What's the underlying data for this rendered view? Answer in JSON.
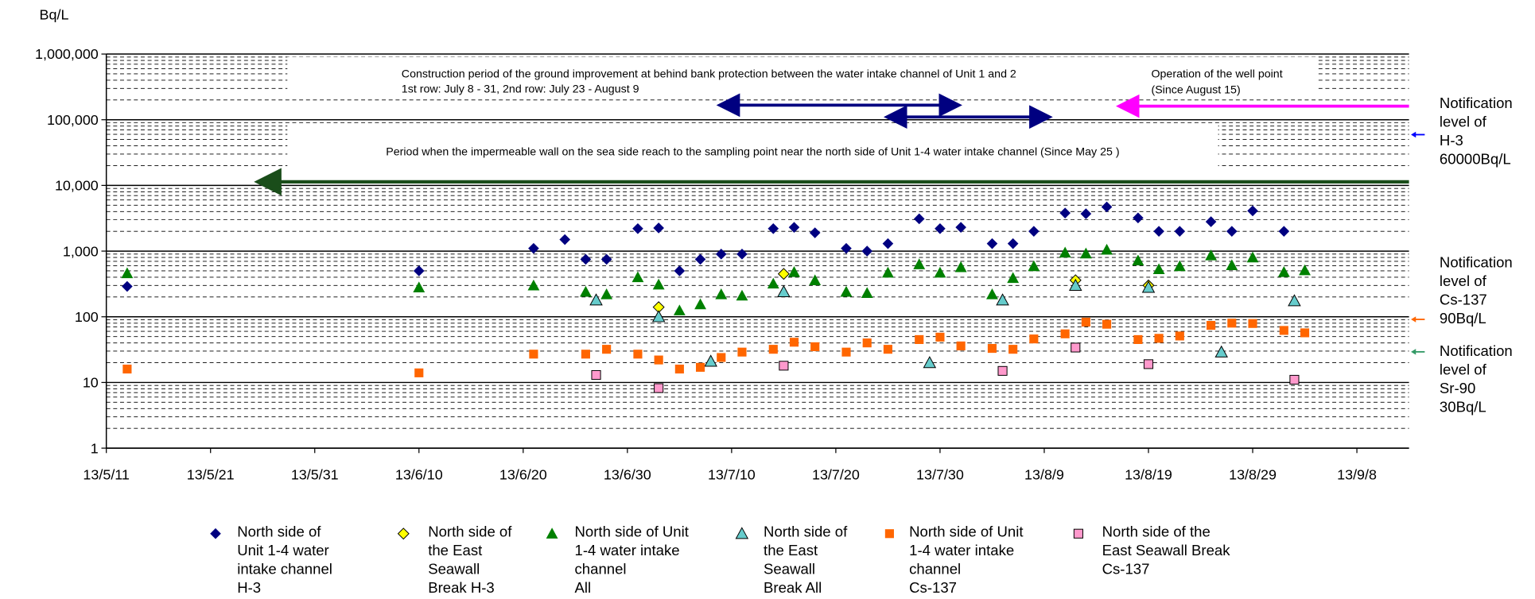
{
  "chart_data": {
    "type": "scatter",
    "y_unit": "Bq/L",
    "log_y": true,
    "grid": true,
    "xlim": [
      "13/5/11",
      "13/9/13"
    ],
    "xticks": [
      "13/5/11",
      "13/5/21",
      "13/5/31",
      "13/6/10",
      "13/6/20",
      "13/6/30",
      "13/7/10",
      "13/7/20",
      "13/7/30",
      "13/8/9",
      "13/8/19",
      "13/8/29",
      "13/9/8"
    ],
    "ylim": [
      1,
      1000000
    ],
    "yticks": [
      1,
      10,
      100,
      {
        "value": 1000,
        "label": "1,000"
      },
      {
        "value": 10000,
        "label": "10,000"
      },
      {
        "value": 100000,
        "label": "100,000"
      },
      {
        "value": 1000000,
        "label": "1,000,000"
      }
    ],
    "series": [
      {
        "name": "North side of\nUnit 1-4 water\nintake channel\nH-3",
        "color": "#000080",
        "marker": "diamond",
        "x": [
          "13/5/13",
          "13/6/10",
          "13/6/21",
          "13/6/24",
          "13/6/26",
          "13/6/28",
          "13/7/1",
          "13/7/3",
          "13/7/5",
          "13/7/7",
          "13/7/9",
          "13/7/11",
          "13/7/14",
          "13/7/16",
          "13/7/18",
          "13/7/21",
          "13/7/23",
          "13/7/25",
          "13/7/28",
          "13/7/30",
          "13/8/1",
          "13/8/4",
          "13/8/6",
          "13/8/8",
          "13/8/11",
          "13/8/13",
          "13/8/15",
          "13/8/18",
          "13/8/20",
          "13/8/22",
          "13/8/25",
          "13/8/27",
          "13/8/29",
          "13/9/1"
        ],
        "values": [
          290,
          500,
          1100,
          1500,
          750,
          750,
          2200,
          2250,
          500,
          750,
          900,
          900,
          2200,
          2300,
          1900,
          1100,
          1000,
          1300,
          3100,
          2200,
          2300,
          1300,
          1300,
          2000,
          3800,
          3700,
          4700,
          3200,
          2000,
          2000,
          2800,
          2000,
          4100,
          2000
        ]
      },
      {
        "name": "North side of\nthe East\nSeawall\nBreak H-3",
        "color": "#ffff00",
        "marker": "diamond",
        "outline": true,
        "x": [
          "13/7/3",
          "13/7/15",
          "13/8/12",
          "13/8/19"
        ],
        "values": [
          140,
          450,
          360,
          300
        ]
      },
      {
        "name": "North side of Unit\n1-4 water intake\nchannel\nAll",
        "color": "#008000",
        "marker": "triangle",
        "x": [
          "13/5/13",
          "13/6/10",
          "13/6/21",
          "13/6/26",
          "13/6/28",
          "13/7/1",
          "13/7/3",
          "13/7/5",
          "13/7/7",
          "13/7/9",
          "13/7/11",
          "13/7/14",
          "13/7/16",
          "13/7/18",
          "13/7/21",
          "13/7/23",
          "13/7/25",
          "13/7/28",
          "13/7/30",
          "13/8/1",
          "13/8/4",
          "13/8/6",
          "13/8/8",
          "13/8/11",
          "13/8/13",
          "13/8/15",
          "13/8/18",
          "13/8/20",
          "13/8/22",
          "13/8/25",
          "13/8/27",
          "13/8/29",
          "13/9/1",
          "13/9/3"
        ],
        "values": [
          460,
          280,
          300,
          240,
          220,
          400,
          310,
          125,
          155,
          220,
          210,
          320,
          480,
          360,
          240,
          230,
          470,
          630,
          470,
          570,
          220,
          390,
          590,
          950,
          920,
          1050,
          720,
          530,
          590,
          860,
          610,
          800,
          480,
          510
        ]
      },
      {
        "name": "North side of\nthe East\nSeawall\nBreak All",
        "color": "#66cccc",
        "marker": "triangle",
        "outline": true,
        "x": [
          "13/6/27",
          "13/7/3",
          "13/7/8",
          "13/7/15",
          "13/7/29",
          "13/8/5",
          "13/8/12",
          "13/8/19",
          "13/8/26",
          "13/9/2"
        ],
        "values": [
          180,
          100,
          21,
          240,
          20,
          180,
          300,
          280,
          29,
          175
        ]
      },
      {
        "name": "North side of Unit\n1-4 water intake\nchannel\nCs-137",
        "color": "#ff6600",
        "marker": "square",
        "x": [
          "13/5/13",
          "13/6/10",
          "13/6/21",
          "13/6/26",
          "13/6/28",
          "13/7/1",
          "13/7/3",
          "13/7/5",
          "13/7/7",
          "13/7/9",
          "13/7/11",
          "13/7/14",
          "13/7/16",
          "13/7/18",
          "13/7/21",
          "13/7/23",
          "13/7/25",
          "13/7/28",
          "13/7/30",
          "13/8/1",
          "13/8/4",
          "13/8/6",
          "13/8/8",
          "13/8/11",
          "13/8/13",
          "13/8/15",
          "13/8/18",
          "13/8/20",
          "13/8/22",
          "13/8/25",
          "13/8/27",
          "13/8/29",
          "13/9/1",
          "13/9/3"
        ],
        "values": [
          16,
          14,
          27,
          27,
          32,
          27,
          22,
          16,
          17,
          24,
          29,
          32,
          41,
          35,
          29,
          40,
          32,
          45,
          49,
          36,
          33,
          32,
          46,
          55,
          83,
          77,
          45,
          47,
          51,
          74,
          80,
          79,
          62,
          57
        ]
      },
      {
        "name": "North side of the\nEast Seawall Break\nCs-137",
        "color": "#ff99cc",
        "marker": "square",
        "outline": true,
        "x": [
          "13/6/27",
          "13/7/3",
          "13/7/15",
          "13/8/5",
          "13/8/12",
          "13/8/19",
          "13/9/2"
        ],
        "values": [
          13,
          8.2,
          18,
          15,
          34,
          19,
          11
        ]
      }
    ],
    "annotations": {
      "construction_line1": "Construction period of the ground improvement at behind bank protection between the water intake channel of Unit 1 and 2",
      "construction_line2": "1st row: July 8 - 31, 2nd row: July 23 - August 9",
      "well_point_line1": "Operation of the well point",
      "well_point_line2": "(Since August 15)",
      "impermeable_wall": "Period when the impermeable wall on the sea side reach to the sampling point near the north side of Unit 1-4 water intake channel (Since May 25 )"
    },
    "notifications": [
      "Notification\nlevel of\nH-3\n60000Bq/L",
      "Notification\nlevel of\nCs-137\n90Bq/L",
      "Notification\nlevel of\nSr-90\n30Bq/L"
    ]
  }
}
